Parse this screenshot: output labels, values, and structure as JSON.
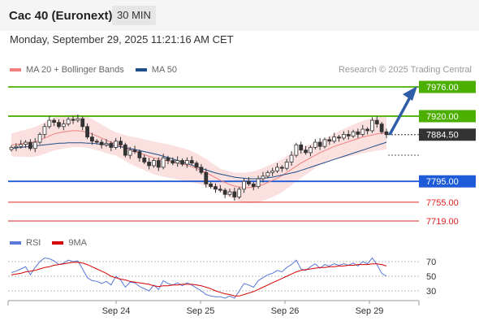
{
  "header": {
    "title": "Cac 40 (Euronext)",
    "timeframe": "30 MIN"
  },
  "datetime": "Monday, September 29, 2025 11:21:16 AM CET",
  "legend": {
    "ma20_label": "MA 20 + Bollinger Bands",
    "ma20_color": "#f08080",
    "ma50_label": "MA 50",
    "ma50_color": "#1f4e8c"
  },
  "research": "Research © 2025 Trading Central",
  "rsi_legend": {
    "rsi_label": "RSI",
    "rsi_color": "#5a78d8",
    "ma_label": "9MA",
    "ma_color": "#d80000"
  },
  "chart_data": {
    "type": "candlestick",
    "price_axis": {
      "min": 7700,
      "max": 8000
    },
    "levels": [
      {
        "value": 7976.0,
        "label": "7976.00",
        "kind": "resistance",
        "color": "#4caf00"
      },
      {
        "value": 7920.0,
        "label": "7920.00",
        "kind": "resistance",
        "color": "#4caf00"
      },
      {
        "value": 7884.5,
        "label": "7884.50",
        "kind": "last",
        "color": "#333333"
      },
      {
        "value": 7795.0,
        "label": "7795.00",
        "kind": "pivot",
        "color": "#1e5bd8"
      },
      {
        "value": 7755.0,
        "label": "7755.00",
        "kind": "support",
        "color": "#e02020"
      },
      {
        "value": 7719.0,
        "label": "7719.00",
        "kind": "support",
        "color": "#e02020"
      }
    ],
    "x_labels": [
      "Sep 24",
      "Sep 25",
      "Sep 26",
      "Sep 29"
    ],
    "close": [
      7860,
      7862,
      7866,
      7870,
      7858,
      7870,
      7885,
      7900,
      7912,
      7908,
      7900,
      7905,
      7914,
      7912,
      7915,
      7900,
      7880,
      7872,
      7870,
      7865,
      7868,
      7860,
      7872,
      7865,
      7845,
      7855,
      7852,
      7840,
      7832,
      7825,
      7835,
      7822,
      7840,
      7835,
      7830,
      7835,
      7828,
      7835,
      7830,
      7822,
      7812,
      7790,
      7785,
      7780,
      7778,
      7770,
      7775,
      7765,
      7780,
      7795,
      7790,
      7785,
      7800,
      7805,
      7812,
      7815,
      7822,
      7820,
      7832,
      7845,
      7865,
      7855,
      7850,
      7860,
      7870,
      7862,
      7875,
      7872,
      7880,
      7878,
      7885,
      7882,
      7890,
      7885,
      7895,
      7892,
      7912,
      7905,
      7890,
      7884.5
    ],
    "ma20": [
      7865,
      7866,
      7867,
      7868,
      7869,
      7871,
      7874,
      7878,
      7882,
      7886,
      7888,
      7890,
      7891,
      7892,
      7892,
      7891,
      7889,
      7886,
      7882,
      7878,
      7874,
      7870,
      7867,
      7863,
      7859,
      7855,
      7852,
      7849,
      7846,
      7843,
      7840,
      7838,
      7836,
      7834,
      7832,
      7830,
      7828,
      7826,
      7823,
      7820,
      7816,
      7812,
      7807,
      7802,
      7797,
      7793,
      7789,
      7786,
      7784,
      7783,
      7783,
      7784,
      7786,
      7789,
      7793,
      7797,
      7801,
      7806,
      7812,
      7818,
      7824,
      7830,
      7835,
      7840,
      7845,
      7850,
      7854,
      7858,
      7862,
      7865,
      7868,
      7871,
      7874,
      7877,
      7880,
      7882,
      7884,
      7886,
      7887,
      7888
    ],
    "ma50": [
      7858,
      7859,
      7860,
      7861,
      7862,
      7863,
      7864,
      7865,
      7866,
      7867,
      7868,
      7868,
      7869,
      7869,
      7869,
      7869,
      7868,
      7868,
      7867,
      7866,
      7865,
      7864,
      7863,
      7861,
      7860,
      7858,
      7856,
      7854,
      7852,
      7850,
      7848,
      7846,
      7843,
      7841,
      7838,
      7835,
      7832,
      7829,
      7826,
      7823,
      7820,
      7817,
      7814,
      7811,
      7809,
      7807,
      7805,
      7803,
      7802,
      7801,
      7800,
      7800,
      7800,
      7801,
      7802,
      7803,
      7805,
      7807,
      7809,
      7811,
      7813,
      7816,
      7819,
      7822,
      7825,
      7828,
      7831,
      7834,
      7837,
      7840,
      7843,
      7846,
      7849,
      7852,
      7855,
      7858,
      7861,
      7864,
      7867,
      7870
    ],
    "rsi_axis": {
      "min": 10,
      "max": 90,
      "ticks": [
        70,
        50,
        30
      ]
    },
    "rsi": [
      55,
      57,
      60,
      63,
      52,
      62,
      70,
      75,
      74,
      71,
      66,
      68,
      72,
      70,
      71,
      60,
      48,
      44,
      43,
      40,
      43,
      38,
      50,
      45,
      35,
      42,
      41,
      36,
      33,
      30,
      38,
      32,
      44,
      40,
      38,
      41,
      37,
      41,
      38,
      34,
      30,
      25,
      23,
      22,
      22,
      20,
      23,
      20,
      30,
      40,
      38,
      35,
      44,
      48,
      52,
      54,
      58,
      56,
      62,
      66,
      72,
      60,
      58,
      63,
      67,
      61,
      66,
      64,
      67,
      65,
      67,
      65,
      68,
      64,
      70,
      67,
      75,
      66,
      54,
      50
    ],
    "rsi_ma": [
      52,
      53,
      54,
      56,
      57,
      58,
      60,
      62,
      63,
      65,
      66,
      67,
      68,
      69,
      69,
      68,
      66,
      63,
      60,
      57,
      54,
      50,
      48,
      46,
      45,
      43,
      42,
      41,
      40,
      39,
      37,
      36,
      37,
      37,
      38,
      38,
      39,
      39,
      39,
      38,
      37,
      35,
      33,
      30,
      28,
      26,
      25,
      23,
      23,
      25,
      27,
      29,
      32,
      35,
      38,
      41,
      44,
      47,
      50,
      53,
      56,
      58,
      59,
      60,
      61,
      62,
      62,
      63,
      63,
      64,
      64,
      65,
      65,
      66,
      66,
      66,
      67,
      67,
      66,
      64
    ]
  }
}
